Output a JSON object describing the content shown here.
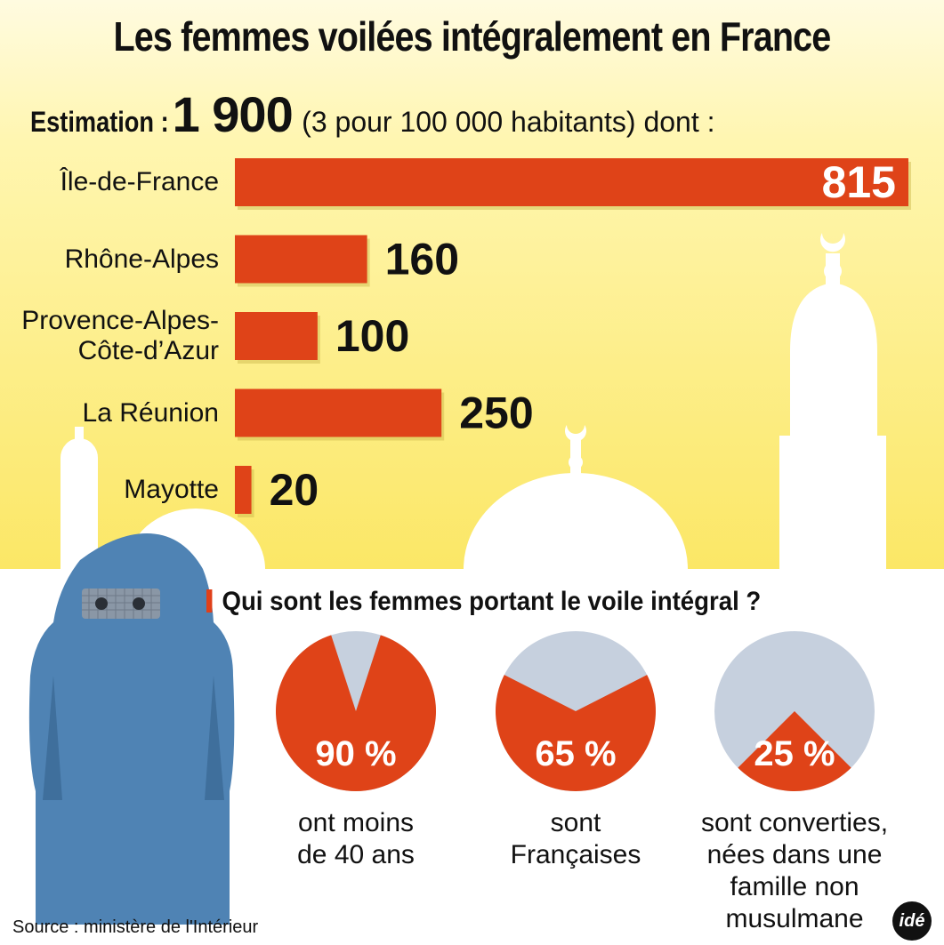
{
  "title": "Les femmes voilées intégralement en France",
  "estimation": {
    "label": "Estimation :",
    "value": "1 900",
    "detail": "(3 pour 100 000 habitants) dont :"
  },
  "chart_data": [
    {
      "type": "bar",
      "orientation": "horizontal",
      "categories": [
        "Île-de-France",
        "Rhône-Alpes",
        "Provence-Alpes-Côte-d’Azur",
        "La Réunion",
        "Mayotte"
      ],
      "category_lines": [
        [
          "Île-de-France"
        ],
        [
          "Rhône-Alpes"
        ],
        [
          "Provence-Alpes-",
          "Côte-d’Azur"
        ],
        [
          "La Réunion"
        ],
        [
          "Mayotte"
        ]
      ],
      "values": [
        815,
        160,
        100,
        250,
        20
      ],
      "value_labels": [
        "815",
        "160",
        "100",
        "250",
        "20"
      ],
      "xlim": [
        0,
        815
      ]
    },
    {
      "type": "pie",
      "title": "Qui sont les femmes portant le voile intégral ?",
      "slices": [
        {
          "value": 90,
          "label": "90 %",
          "caption": [
            "ont moins",
            "de 40 ans"
          ]
        },
        {
          "value": 65,
          "label": "65 %",
          "caption": [
            "sont",
            "Françaises"
          ]
        },
        {
          "value": 25,
          "label": "25 %",
          "caption": [
            "sont converties,",
            "nées dans une",
            "famille non",
            "musulmane"
          ]
        }
      ]
    }
  ],
  "colors": {
    "bar": "#df4318",
    "pie_fill": "#df4318",
    "pie_rest": "#c6d0de",
    "figure": "#4a7fb0",
    "background_top": "#fff7b8",
    "background_bottom": "#fbe96a"
  },
  "icons": [
    "mosque-silhouette-icon",
    "veiled-woman-icon",
    "ide-logo-icon"
  ],
  "source": "Source : ministère de l'Intérieur",
  "logo": "idé"
}
